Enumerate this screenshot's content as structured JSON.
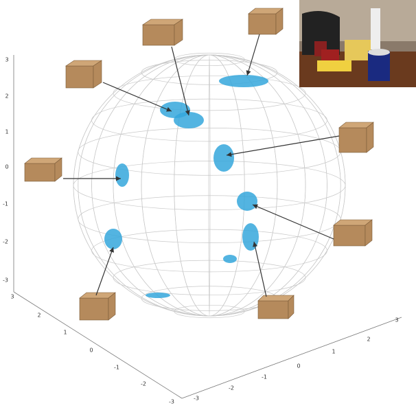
{
  "axes": {
    "z_ticks": [
      3,
      2,
      1,
      0,
      -1,
      -2,
      -3
    ],
    "x_ticks": [
      3,
      2,
      1,
      0,
      -1,
      -2,
      -3
    ],
    "y_ticks": [
      -3,
      -2,
      -1,
      0,
      1,
      2,
      3
    ]
  }
}
